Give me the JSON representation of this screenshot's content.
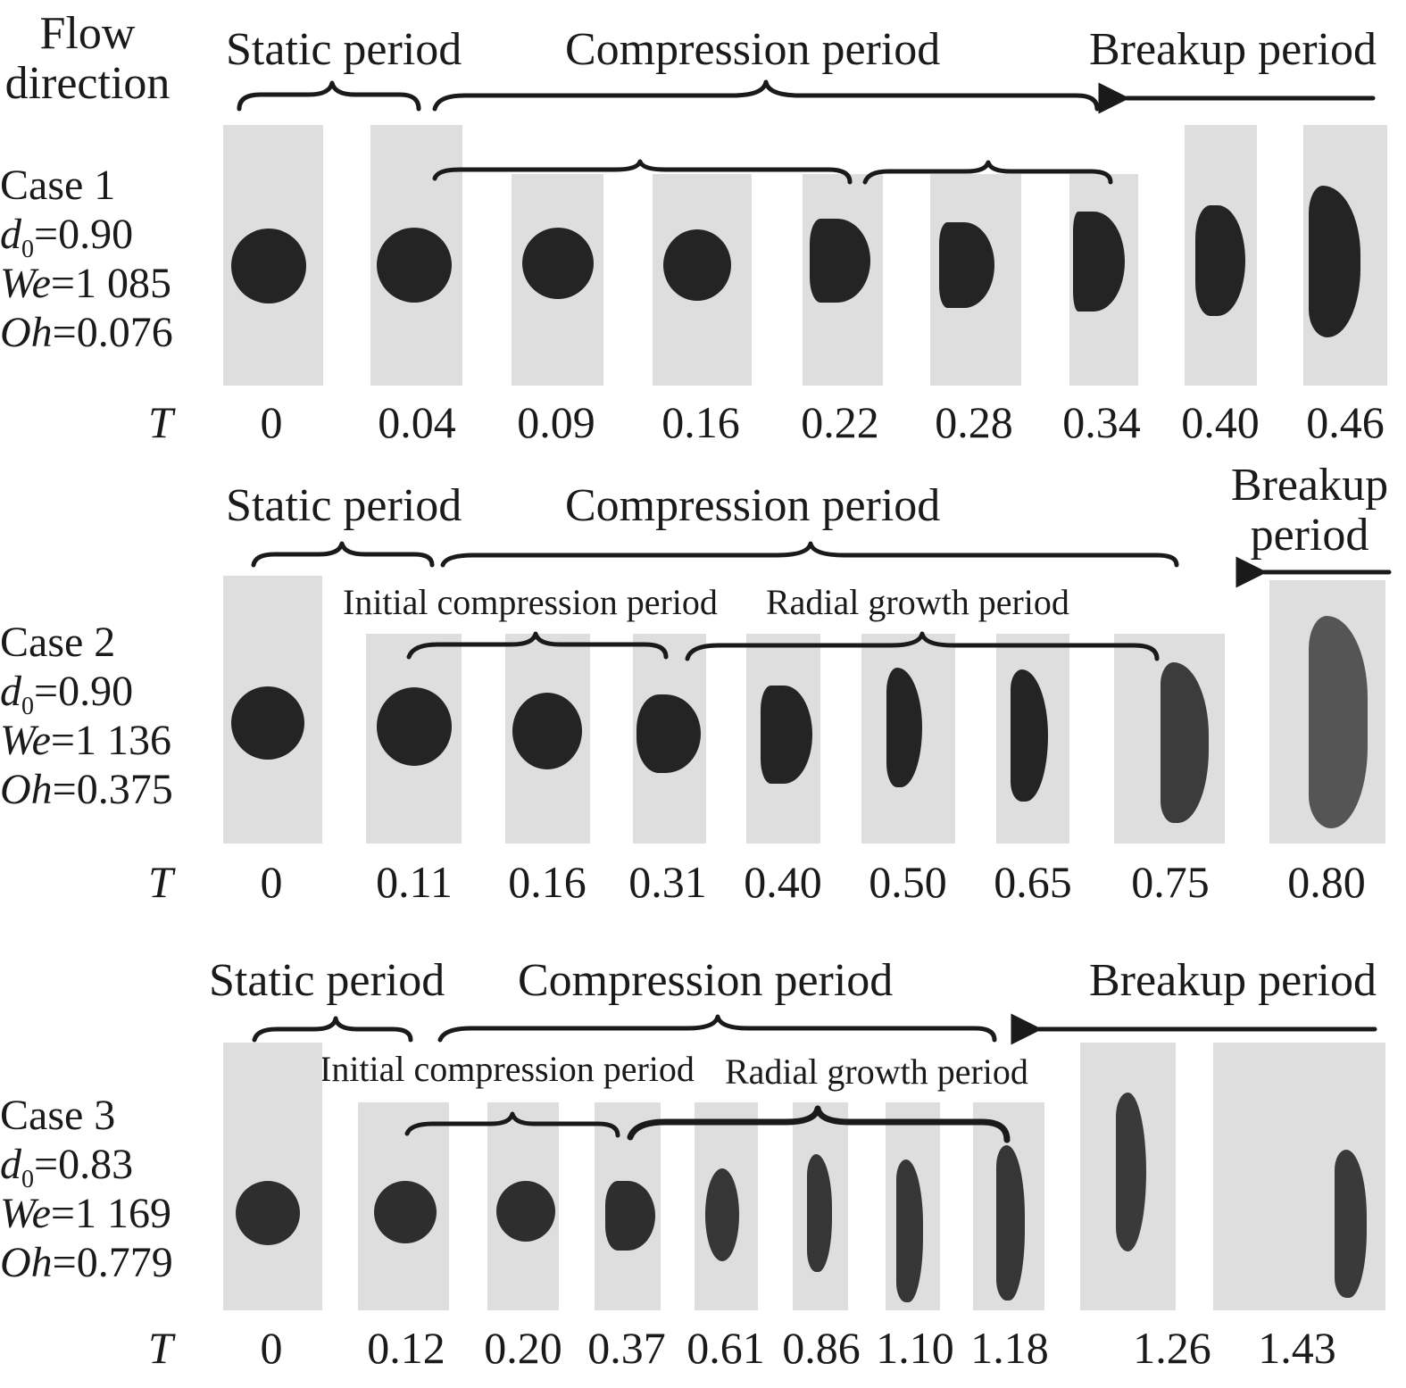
{
  "flow_direction": "Flow\ndirection",
  "time_symbol": "T",
  "cases": [
    {
      "title": "Case 1",
      "d0": "=0.90",
      "We": "=1 085",
      "Oh": "=0.076",
      "periods": {
        "static": "Static period",
        "compression": "Compression period",
        "breakup": "Breakup period"
      },
      "times": [
        "0",
        "0.04",
        "0.09",
        "0.16",
        "0.22",
        "0.28",
        "0.34",
        "0.40",
        "0.46"
      ]
    },
    {
      "title": "Case 2",
      "d0": "=0.90",
      "We": "=1 136",
      "Oh": "=0.375",
      "periods": {
        "static": "Static period",
        "compression": "Compression period",
        "breakup": "Breakup\nperiod",
        "initial_compression": "Initial compression period",
        "radial_growth": "Radial growth period"
      },
      "times": [
        "0",
        "0.11",
        "0.16",
        "0.31",
        "0.40",
        "0.50",
        "0.65",
        "0.75",
        "0.80"
      ]
    },
    {
      "title": "Case 3",
      "d0": "=0.83",
      "We": "=1 169",
      "Oh": "=0.779",
      "periods": {
        "static": "Static period",
        "compression": "Compression period",
        "breakup": "Breakup period",
        "initial_compression": "Initial compression period",
        "radial_growth": "Radial growth period"
      },
      "times": [
        "0",
        "0.12",
        "0.20",
        "0.37",
        "0.61",
        "0.86",
        "1.10",
        "1.18",
        "1.26",
        "1.43"
      ]
    }
  ],
  "colors": {
    "panel": "#dedede",
    "droplet": "#242424",
    "text": "#1a1a1a"
  }
}
